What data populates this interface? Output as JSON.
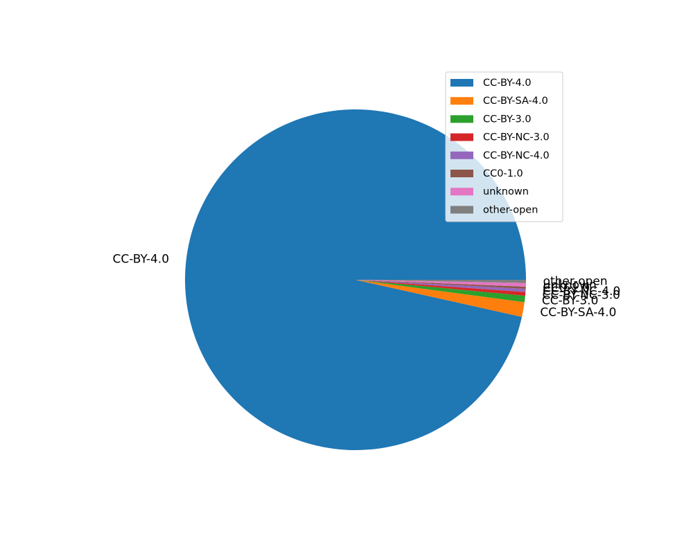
{
  "chart_data": {
    "type": "pie",
    "title": "",
    "start_angle_deg": 0,
    "direction": "counterclockwise",
    "legend_position": "top-right",
    "slices": [
      {
        "label": "CC-BY-4.0",
        "value": 96.5,
        "color": "#1f77b4"
      },
      {
        "label": "CC-BY-SA-4.0",
        "value": 1.4,
        "color": "#ff7f0e"
      },
      {
        "label": "CC-BY-3.0",
        "value": 0.6,
        "color": "#2ca02c"
      },
      {
        "label": "CC-BY-NC-3.0",
        "value": 0.35,
        "color": "#d62728"
      },
      {
        "label": "CC-BY-NC-4.0",
        "value": 0.3,
        "color": "#9467bd"
      },
      {
        "label": "CC0-1.0",
        "value": 0.2,
        "color": "#8c564b"
      },
      {
        "label": "unknown",
        "value": 0.35,
        "color": "#e377c2"
      },
      {
        "label": "other-open",
        "value": 0.3,
        "color": "#7f7f7f"
      }
    ]
  }
}
